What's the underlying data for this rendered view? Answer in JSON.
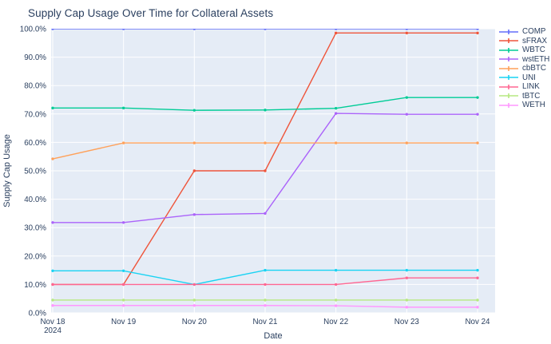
{
  "title": "Supply Cap Usage Over Time for Collateral Assets",
  "chart_data": {
    "type": "line",
    "title": "Supply Cap Usage Over Time for Collateral Assets",
    "xlabel": "Date",
    "ylabel": "Supply Cap Usage",
    "categories": [
      "Nov 18\n2024",
      "Nov 19",
      "Nov 20",
      "Nov 21",
      "Nov 22",
      "Nov 23",
      "Nov 24"
    ],
    "ylim": [
      0,
      100
    ],
    "ytick_step": 10,
    "ytick_suffix": "%",
    "grid": true,
    "legend_position": "right",
    "plot_bg_color": "#E5ECF6",
    "grid_color": "#FFFFFF",
    "text_color": "#2a3f5f",
    "series": [
      {
        "name": "COMP",
        "color": "#636EFA",
        "values": [
          100,
          100,
          100,
          100,
          100,
          100,
          100
        ]
      },
      {
        "name": "sFRAX",
        "color": "#EF553B",
        "values": [
          10,
          10,
          50,
          50,
          98.5,
          98.5,
          98.5
        ]
      },
      {
        "name": "WBTC",
        "color": "#00CC96",
        "values": [
          72.1,
          72.1,
          71.3,
          71.4,
          72,
          75.8,
          75.8
        ]
      },
      {
        "name": "wstETH",
        "color": "#AB63FA",
        "values": [
          31.8,
          31.8,
          34.6,
          35,
          70.2,
          69.9,
          69.9
        ]
      },
      {
        "name": "cbBTC",
        "color": "#FFA15A",
        "values": [
          54.2,
          59.8,
          59.8,
          59.8,
          59.8,
          59.8,
          59.8
        ]
      },
      {
        "name": "UNI",
        "color": "#19D3F3",
        "values": [
          14.8,
          14.8,
          10,
          15,
          15,
          15,
          15
        ]
      },
      {
        "name": "LINK",
        "color": "#FF6692",
        "values": [
          10,
          10,
          10,
          10,
          10,
          12.3,
          12.3
        ]
      },
      {
        "name": "tBTC",
        "color": "#B6E880",
        "values": [
          4.5,
          4.5,
          4.5,
          4.5,
          4.5,
          4.5,
          4.5
        ]
      },
      {
        "name": "WETH",
        "color": "#FF97FF",
        "values": [
          2.6,
          2.6,
          2.6,
          2.6,
          2.5,
          2,
          2
        ]
      }
    ]
  }
}
